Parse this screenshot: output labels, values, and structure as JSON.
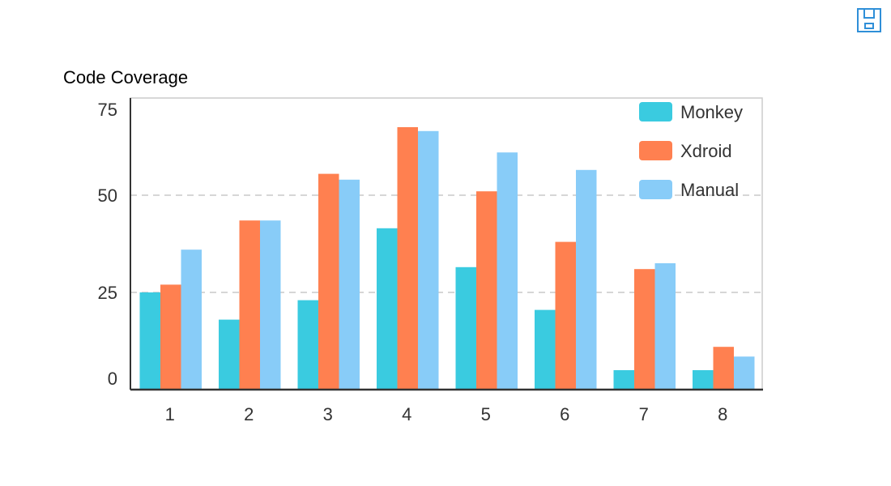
{
  "toolbar": {
    "save_icon": "save-icon",
    "save_color": "#2f8fd8"
  },
  "chart_data": {
    "type": "bar",
    "ylabel": "Code Coverage",
    "xlabel": "",
    "categories": [
      "1",
      "2",
      "3",
      "4",
      "5",
      "6",
      "7",
      "8"
    ],
    "ylim": [
      0,
      75
    ],
    "yticks": [
      0,
      25,
      50,
      75
    ],
    "grid": "horizontal-dashed",
    "legend_position": "top-right",
    "series": [
      {
        "name": "Monkey",
        "color": "#3acbe0",
        "values": [
          25,
          18,
          23,
          41.5,
          31.5,
          20.5,
          5,
          5
        ]
      },
      {
        "name": "Xdroid",
        "color": "#ff8050",
        "values": [
          27,
          43.5,
          55.5,
          67.5,
          51,
          38,
          31,
          11
        ]
      },
      {
        "name": "Manual",
        "color": "#88ccf8",
        "values": [
          36,
          43.5,
          54,
          66.5,
          61,
          56.5,
          32.5,
          8.5
        ]
      }
    ]
  }
}
